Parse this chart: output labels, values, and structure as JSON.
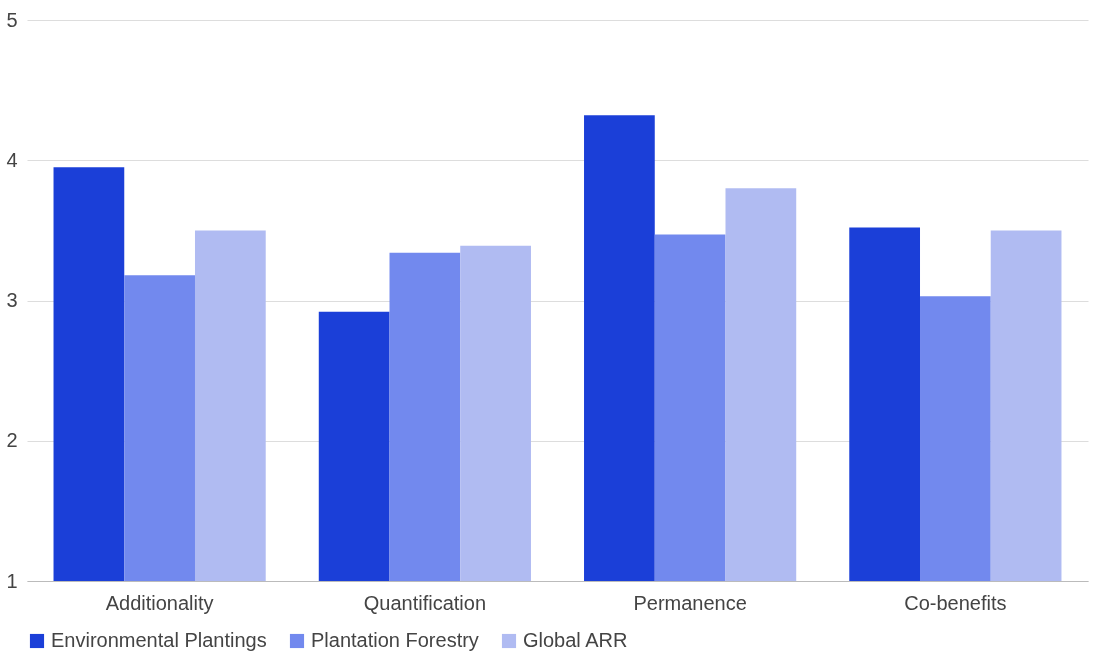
{
  "chart_data": {
    "type": "bar",
    "categories": [
      "Additionality",
      "Quantification",
      "Permanence",
      "Co-benefits"
    ],
    "series": [
      {
        "name": "Environmental Plantings",
        "color": "#1b3fd8",
        "values": [
          3.95,
          2.92,
          4.32,
          3.52
        ]
      },
      {
        "name": "Plantation Forestry",
        "color": "#7289ee",
        "values": [
          3.18,
          3.34,
          3.47,
          3.03
        ]
      },
      {
        "name": "Global ARR",
        "color": "#b0bbf2",
        "values": [
          3.5,
          3.39,
          3.8,
          3.5
        ]
      }
    ],
    "ylim": [
      1,
      5
    ],
    "yticks": [
      1,
      2,
      3,
      4,
      5
    ],
    "grid": "y",
    "legend": "bottom"
  }
}
